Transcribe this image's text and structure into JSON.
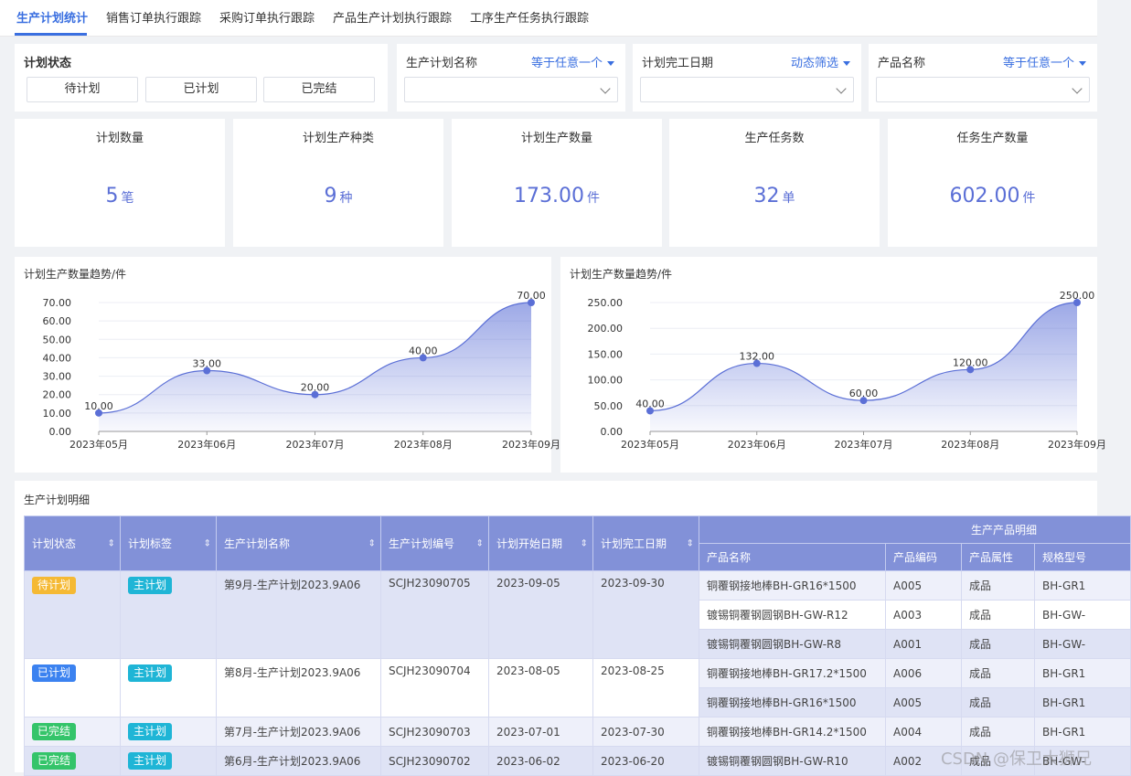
{
  "tabs": [
    {
      "label": "生产计划统计",
      "active": true
    },
    {
      "label": "销售订单执行跟踪"
    },
    {
      "label": "采购订单执行跟踪"
    },
    {
      "label": "产品生产计划执行跟踪"
    },
    {
      "label": "工序生产任务执行跟踪"
    }
  ],
  "filters": {
    "status": {
      "title": "计划状态",
      "options": [
        "待计划",
        "已计划",
        "已完结"
      ]
    },
    "plan_name": {
      "title": "生产计划名称",
      "operator": "等于任意一个",
      "value": ""
    },
    "finish_date": {
      "title": "计划完工日期",
      "operator": "动态筛选",
      "value": ""
    },
    "product_name": {
      "title": "产品名称",
      "operator": "等于任意一个",
      "value": ""
    }
  },
  "stats": [
    {
      "label": "计划数量",
      "value": "5",
      "unit": "笔"
    },
    {
      "label": "计划生产种类",
      "value": "9",
      "unit": "种"
    },
    {
      "label": "计划生产数量",
      "value": "173.00",
      "unit": "件"
    },
    {
      "label": "生产任务数",
      "value": "32",
      "unit": "单"
    },
    {
      "label": "任务生产数量",
      "value": "602.00",
      "unit": "件"
    }
  ],
  "chart_data": [
    {
      "type": "area",
      "title": "计划生产数量趋势/件",
      "categories": [
        "2023年05月",
        "2023年06月",
        "2023年07月",
        "2023年08月",
        "2023年09月"
      ],
      "values": [
        10,
        33,
        20,
        40,
        70
      ],
      "value_labels": [
        "10.00",
        "33.00",
        "20.00",
        "40.00",
        "70.00"
      ],
      "y_ticks": [
        "0.00",
        "10.00",
        "20.00",
        "30.00",
        "40.00",
        "50.00",
        "60.00",
        "70.00"
      ],
      "ylim": [
        0,
        70
      ],
      "color": "#5b6fd6"
    },
    {
      "type": "area",
      "title": "计划生产数量趋势/件",
      "categories": [
        "2023年05月",
        "2023年06月",
        "2023年07月",
        "2023年08月",
        "2023年09月"
      ],
      "values": [
        40,
        132,
        60,
        120,
        250
      ],
      "value_labels": [
        "40.00",
        "132.00",
        "60.00",
        "120.00",
        "250.00"
      ],
      "y_ticks": [
        "0.00",
        "50.00",
        "100.00",
        "150.00",
        "200.00",
        "250.00"
      ],
      "ylim": [
        0,
        250
      ],
      "color": "#5b6fd6"
    }
  ],
  "table": {
    "title": "生产计划明细",
    "headers": {
      "status": "计划状态",
      "tag": "计划标签",
      "name": "生产计划名称",
      "code": "生产计划编号",
      "start": "计划开始日期",
      "end": "计划完工日期",
      "group": "生产产品明细",
      "product_name": "产品名称",
      "product_code": "产品编码",
      "product_attr": "产品属性",
      "spec": "规格型号"
    },
    "plans": [
      {
        "status": "待计划",
        "status_color": "#f5b934",
        "tag": "主计划",
        "name": "第9月-生产计划2023.9A06",
        "code": "SCJH23090705",
        "start": "2023-09-05",
        "end": "2023-09-30",
        "products": [
          {
            "name": "铜覆钢接地棒BH-GR16*1500",
            "code": "A005",
            "attr": "成品",
            "spec": "BH-GR1"
          },
          {
            "name": "镀锡铜覆钢圆钢BH-GW-R12",
            "code": "A003",
            "attr": "成品",
            "spec": "BH-GW-"
          },
          {
            "name": "镀锡铜覆钢圆钢BH-GW-R8",
            "code": "A001",
            "attr": "成品",
            "spec": "BH-GW-"
          }
        ]
      },
      {
        "status": "已计划",
        "status_color": "#3b82f0",
        "tag": "主计划",
        "name": "第8月-生产计划2023.9A06",
        "code": "SCJH23090704",
        "start": "2023-08-05",
        "end": "2023-08-25",
        "products": [
          {
            "name": "铜覆钢接地棒BH-GR17.2*1500",
            "code": "A006",
            "attr": "成品",
            "spec": "BH-GR1"
          },
          {
            "name": "铜覆钢接地棒BH-GR16*1500",
            "code": "A005",
            "attr": "成品",
            "spec": "BH-GR1"
          }
        ]
      },
      {
        "status": "已完结",
        "status_color": "#34c46a",
        "tag": "主计划",
        "name": "第7月-生产计划2023.9A06",
        "code": "SCJH23090703",
        "start": "2023-07-01",
        "end": "2023-07-30",
        "products": [
          {
            "name": "铜覆钢接地棒BH-GR14.2*1500",
            "code": "A004",
            "attr": "成品",
            "spec": "BH-GR1"
          }
        ]
      },
      {
        "status": "已完结",
        "status_color": "#34c46a",
        "tag": "主计划",
        "name": "第6月-生产计划2023.9A06",
        "code": "SCJH23090702",
        "start": "2023-06-02",
        "end": "2023-06-20",
        "products": [
          {
            "name": "镀锡铜覆钢圆钢BH-GW-R10",
            "code": "A002",
            "attr": "成品",
            "spec": "BH-GW-"
          }
        ]
      }
    ],
    "tag_color": "#1fb5d6"
  },
  "watermark": "CSDN @保卫大狮兄"
}
